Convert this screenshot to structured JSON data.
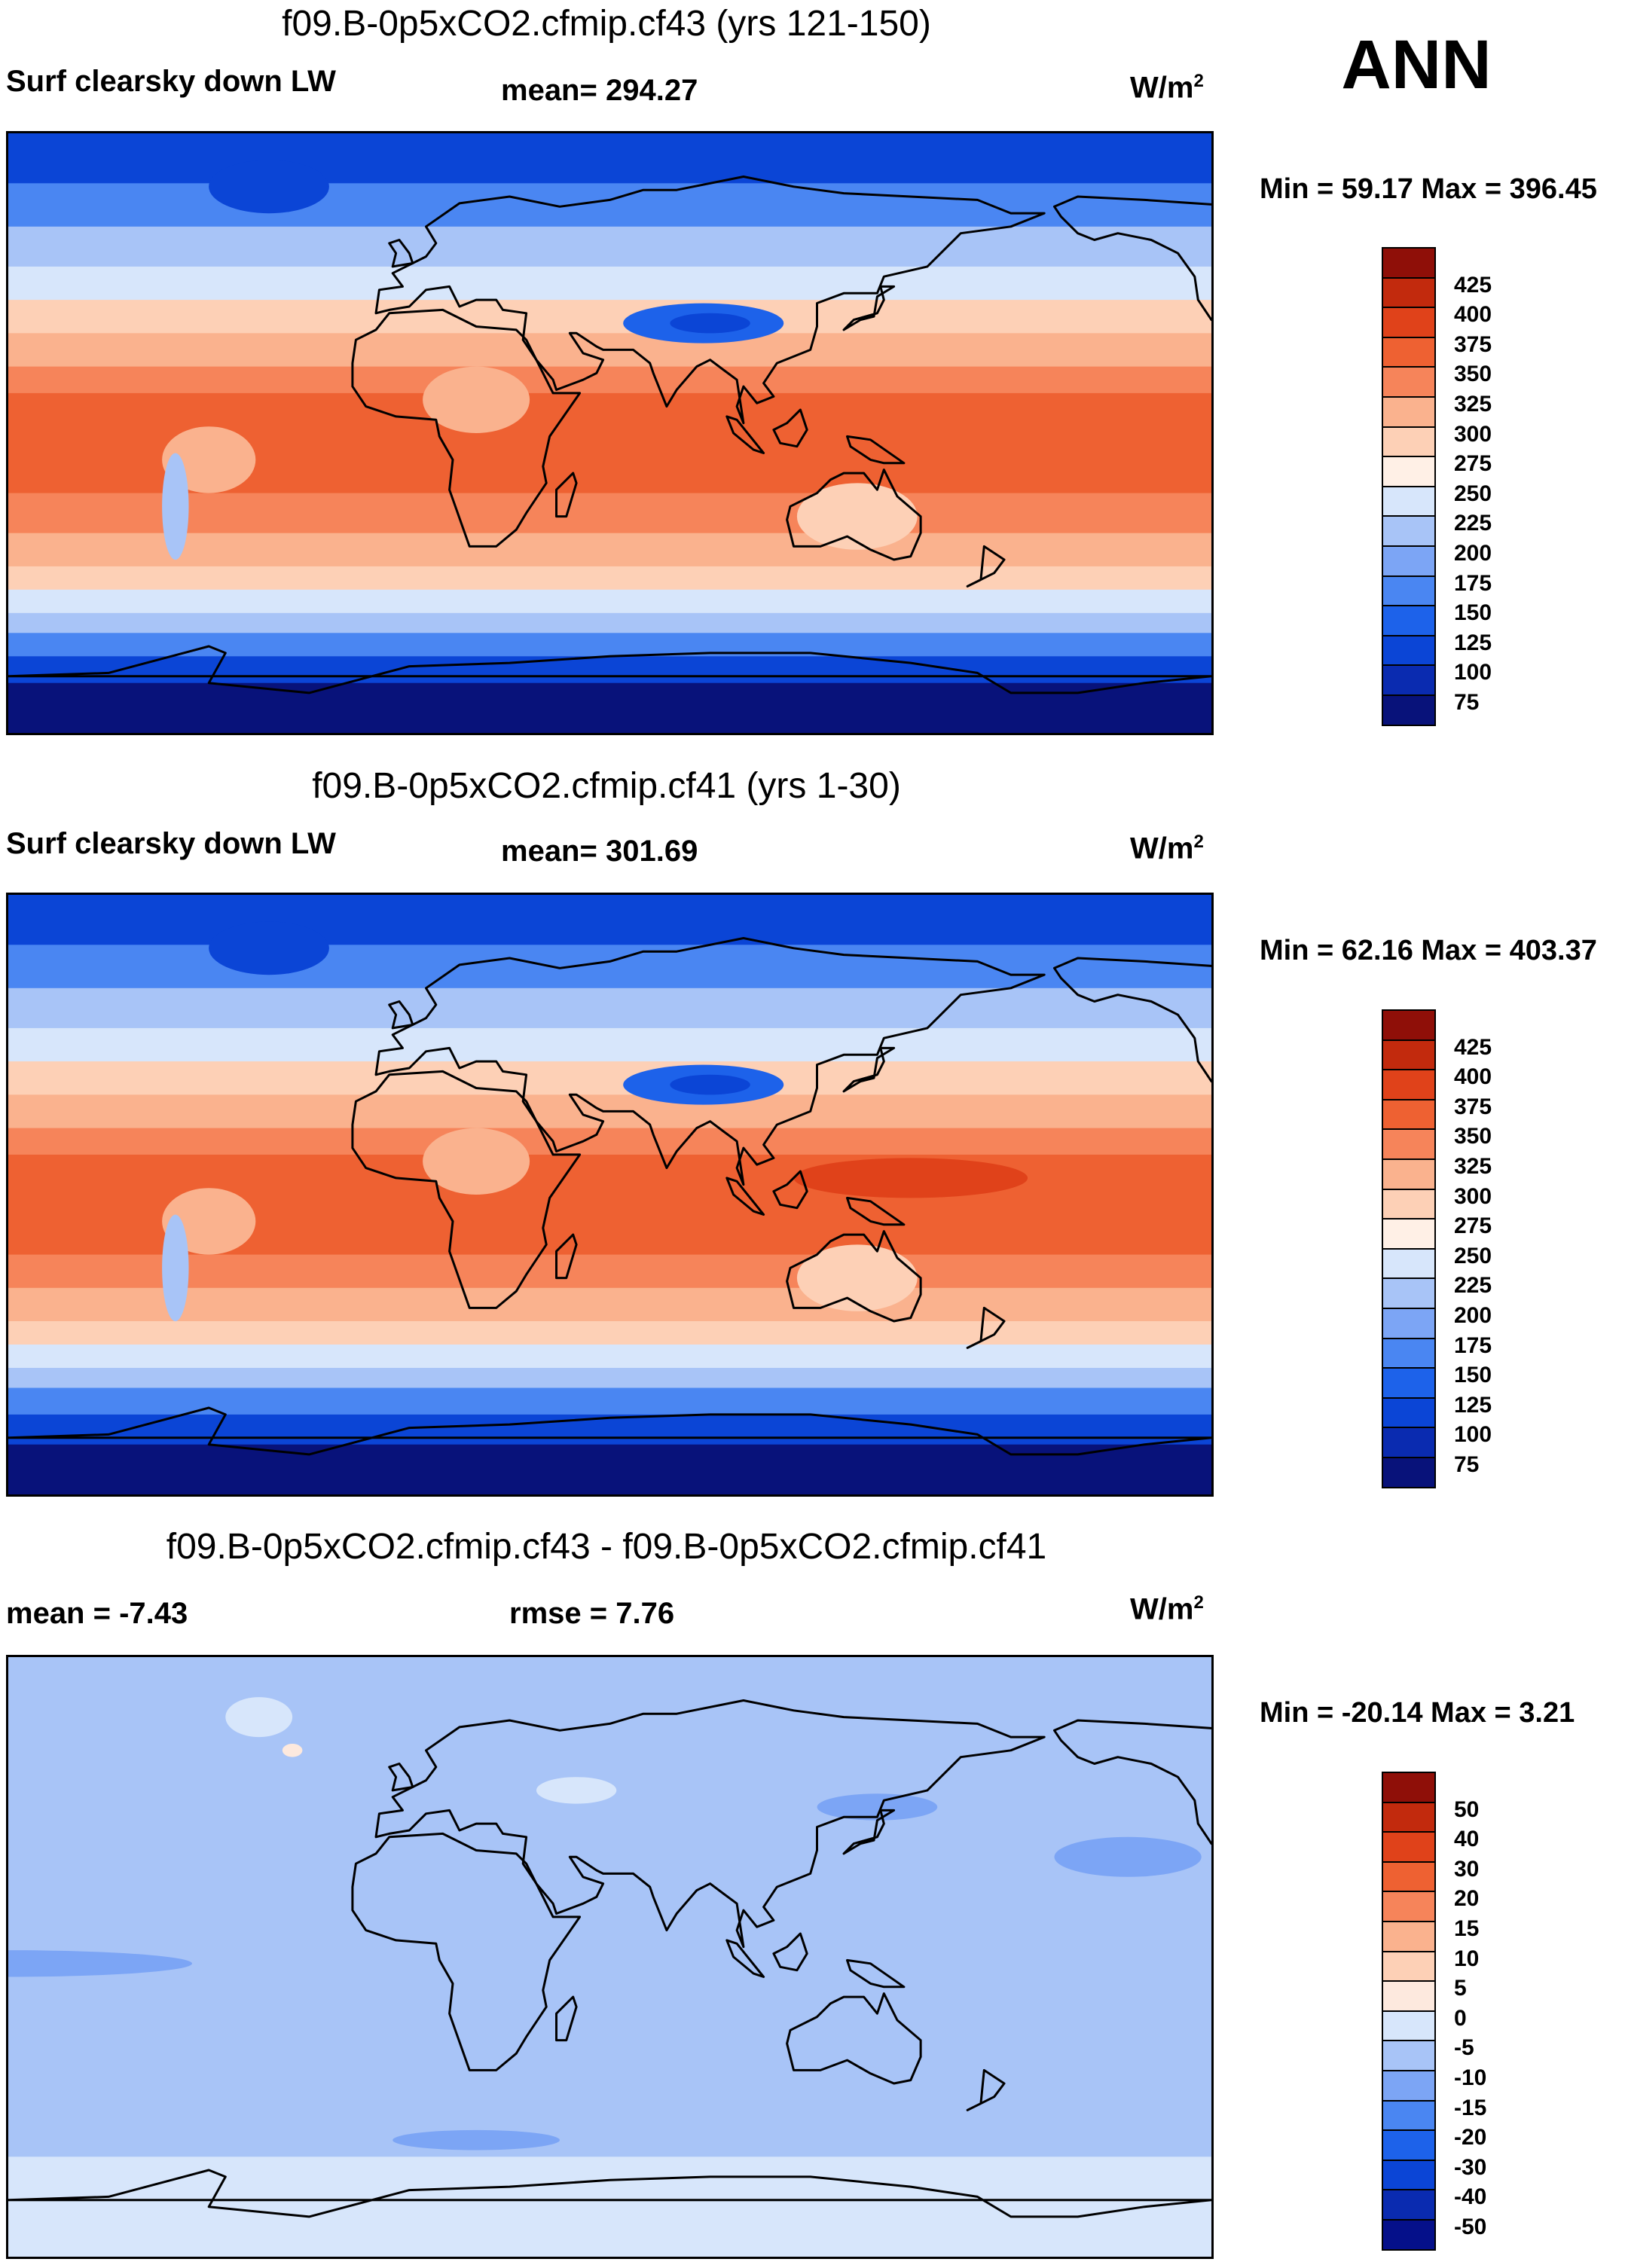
{
  "season": "ANN",
  "palette": {
    "abs": [
      "#08127a",
      "#0a2bb0",
      "#0b45d6",
      "#1d62ea",
      "#4a86f2",
      "#7ca5f5",
      "#a8c4f7",
      "#d7e6fb",
      "#fff0e6",
      "#fdd0b6",
      "#fab28e",
      "#f6845a",
      "#ee6132",
      "#e0421a",
      "#c22a0d",
      "#8f0f08"
    ],
    "diff": [
      "#05108a",
      "#0a2bb0",
      "#0b45d6",
      "#1d62ea",
      "#4a86f2",
      "#7ca5f5",
      "#a8c4f7",
      "#d7e6fb",
      "#fde9de",
      "#fdd0b6",
      "#fab28e",
      "#f6845a",
      "#ee6132",
      "#e0421a",
      "#c22a0d",
      "#8f0f08"
    ]
  },
  "panels": [
    {
      "title": "f09.B-0p5xCO2.cfmip.cf43 (yrs 121-150)",
      "left": "Surf clearsky down LW",
      "center": "mean= 294.27",
      "units": "W/m",
      "units_sup": "2",
      "minmax": "Min =  59.17 Max = 396.45",
      "colorbar_labels": [
        "425",
        "400",
        "375",
        "350",
        "325",
        "300",
        "275",
        "250",
        "225",
        "200",
        "175",
        "150",
        "125",
        "100",
        "75"
      ],
      "palette": "abs",
      "bands": [
        {
          "lat": 90,
          "level": 2
        },
        {
          "lat": 75,
          "level": 4
        },
        {
          "lat": 62,
          "level": 6
        },
        {
          "lat": 50,
          "level": 7
        },
        {
          "lat": 40,
          "level": 9
        },
        {
          "lat": 30,
          "level": 10
        },
        {
          "lat": 20,
          "level": 11
        },
        {
          "lat": 12,
          "level": 12
        },
        {
          "lat": -18,
          "level": 11
        },
        {
          "lat": -30,
          "level": 10
        },
        {
          "lat": -40,
          "level": 9
        },
        {
          "lat": -47,
          "level": 7
        },
        {
          "lat": -54,
          "level": 6
        },
        {
          "lat": -60,
          "level": 4
        },
        {
          "lat": -67,
          "level": 2
        },
        {
          "lat": -75,
          "level": 0
        }
      ],
      "blobs": [
        {
          "lon": 88,
          "lat": 33,
          "rlon": 24,
          "rlat": 6,
          "level": 3
        },
        {
          "lon": 90,
          "lat": 33,
          "rlon": 12,
          "rlat": 3,
          "level": 2
        },
        {
          "lon": -42,
          "lat": 74,
          "rlon": 18,
          "rlat": 8,
          "level": 2
        },
        {
          "lon": 20,
          "lat": 10,
          "rlon": 16,
          "rlat": 10,
          "level": 10
        },
        {
          "lon": -60,
          "lat": -8,
          "rlon": 14,
          "rlat": 10,
          "level": 10
        },
        {
          "lon": 134,
          "lat": -25,
          "rlon": 18,
          "rlat": 10,
          "level": 9
        },
        {
          "lon": -70,
          "lat": -22,
          "rlon": 4,
          "rlat": 16,
          "level": 6
        }
      ]
    },
    {
      "title": "f09.B-0p5xCO2.cfmip.cf41 (yrs 1-30)",
      "left": "Surf clearsky down LW",
      "center": "mean= 301.69",
      "units": "W/m",
      "units_sup": "2",
      "minmax": "Min = 62.16 Max = 403.37",
      "colorbar_labels": [
        "425",
        "400",
        "375",
        "350",
        "325",
        "300",
        "275",
        "250",
        "225",
        "200",
        "175",
        "150",
        "125",
        "100",
        "75"
      ],
      "palette": "abs",
      "bands": [
        {
          "lat": 90,
          "level": 2
        },
        {
          "lat": 75,
          "level": 4
        },
        {
          "lat": 62,
          "level": 6
        },
        {
          "lat": 50,
          "level": 7
        },
        {
          "lat": 40,
          "level": 9
        },
        {
          "lat": 30,
          "level": 10
        },
        {
          "lat": 20,
          "level": 11
        },
        {
          "lat": 12,
          "level": 12
        },
        {
          "lat": -18,
          "level": 11
        },
        {
          "lat": -28,
          "level": 10
        },
        {
          "lat": -38,
          "level": 9
        },
        {
          "lat": -45,
          "level": 7
        },
        {
          "lat": -52,
          "level": 6
        },
        {
          "lat": -58,
          "level": 4
        },
        {
          "lat": -66,
          "level": 2
        },
        {
          "lat": -75,
          "level": 0
        }
      ],
      "blobs": [
        {
          "lon": 88,
          "lat": 33,
          "rlon": 24,
          "rlat": 6,
          "level": 3
        },
        {
          "lon": 90,
          "lat": 33,
          "rlon": 12,
          "rlat": 3,
          "level": 2
        },
        {
          "lon": -42,
          "lat": 74,
          "rlon": 18,
          "rlat": 8,
          "level": 2
        },
        {
          "lon": 150,
          "lat": 5,
          "rlon": 35,
          "rlat": 6,
          "level": 13
        },
        {
          "lon": 20,
          "lat": 10,
          "rlon": 16,
          "rlat": 10,
          "level": 10
        },
        {
          "lon": -60,
          "lat": -8,
          "rlon": 14,
          "rlat": 10,
          "level": 10
        },
        {
          "lon": 134,
          "lat": -25,
          "rlon": 18,
          "rlat": 10,
          "level": 9
        },
        {
          "lon": -70,
          "lat": -22,
          "rlon": 4,
          "rlat": 16,
          "level": 6
        }
      ]
    },
    {
      "title": "f09.B-0p5xCO2.cfmip.cf43 - f09.B-0p5xCO2.cfmip.cf41",
      "left": "mean =  -7.43",
      "center": "rmse =    7.76",
      "units": "W/m",
      "units_sup": "2",
      "minmax": "Min = -20.14 Max =   3.21",
      "colorbar_labels": [
        "50",
        "40",
        "30",
        "20",
        "15",
        "10",
        "5",
        "0",
        "-5",
        "-10",
        "-15",
        "-20",
        "-30",
        "-40",
        "-50"
      ],
      "palette": "diff",
      "bands": [
        {
          "lat": 90,
          "level": 6
        },
        {
          "lat": -60,
          "level": 7
        }
      ],
      "blobs": [
        {
          "lon": 140,
          "lat": 45,
          "rlon": 18,
          "rlat": 4,
          "level": 5
        },
        {
          "lon": -145,
          "lat": 30,
          "rlon": 22,
          "rlat": 6,
          "level": 5
        },
        {
          "lon": -120,
          "lat": -2,
          "rlon": 55,
          "rlat": 4,
          "level": 5
        },
        {
          "lon": 50,
          "lat": 50,
          "rlon": 12,
          "rlat": 4,
          "level": 7
        },
        {
          "lon": 20,
          "lat": -55,
          "rlon": 25,
          "rlat": 3,
          "level": 5
        },
        {
          "lon": -45,
          "lat": 72,
          "rlon": 10,
          "rlat": 6,
          "level": 7
        },
        {
          "lon": -35,
          "lat": 62,
          "rlon": 3,
          "rlat": 2,
          "level": 8
        }
      ]
    }
  ]
}
